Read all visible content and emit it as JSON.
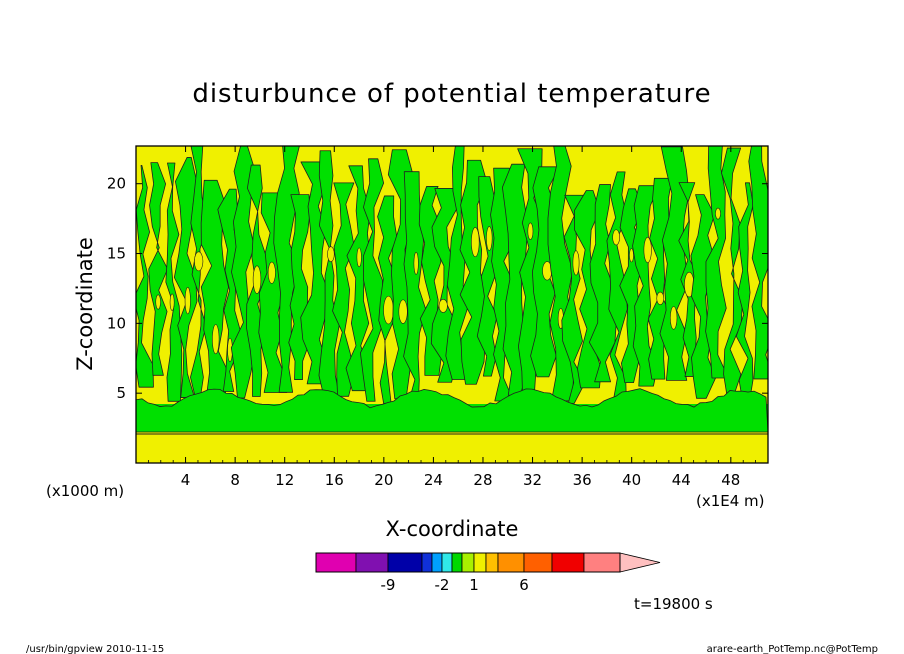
{
  "chart_data": {
    "type": "heatmap",
    "title": "disturbunce of potential temperature",
    "xlabel": "X-coordinate",
    "ylabel": "Z-coordinate",
    "x_unit": "(x1E4 m)",
    "y_unit": "(x1000 m)",
    "xlim": [
      0,
      51
    ],
    "ylim": [
      0,
      22.7
    ],
    "x_ticks": [
      4,
      8,
      12,
      16,
      20,
      24,
      28,
      32,
      36,
      40,
      44,
      48
    ],
    "y_ticks": [
      5,
      10,
      15,
      20
    ],
    "colorbar": {
      "colors": [
        "#e000b0",
        "#8010b0",
        "#0000a8",
        "#1030d8",
        "#00a0ff",
        "#30e8e8",
        "#00d800",
        "#a8f000",
        "#f0f000",
        "#ffc000",
        "#ff9000",
        "#ff6000",
        "#f00000",
        "#ff8080",
        "#ffc0c0"
      ],
      "tick_labels": [
        "-9",
        "-2",
        "1",
        "6"
      ]
    },
    "time_label": "t=19800 s",
    "dominant_levels": {
      "yellow": "#f0f000",
      "green": "#00e000"
    }
  },
  "footer": {
    "left": "/usr/bin/gpview   2010-11-15",
    "right": "arare-earth_PotTemp.nc@PotTemp"
  }
}
